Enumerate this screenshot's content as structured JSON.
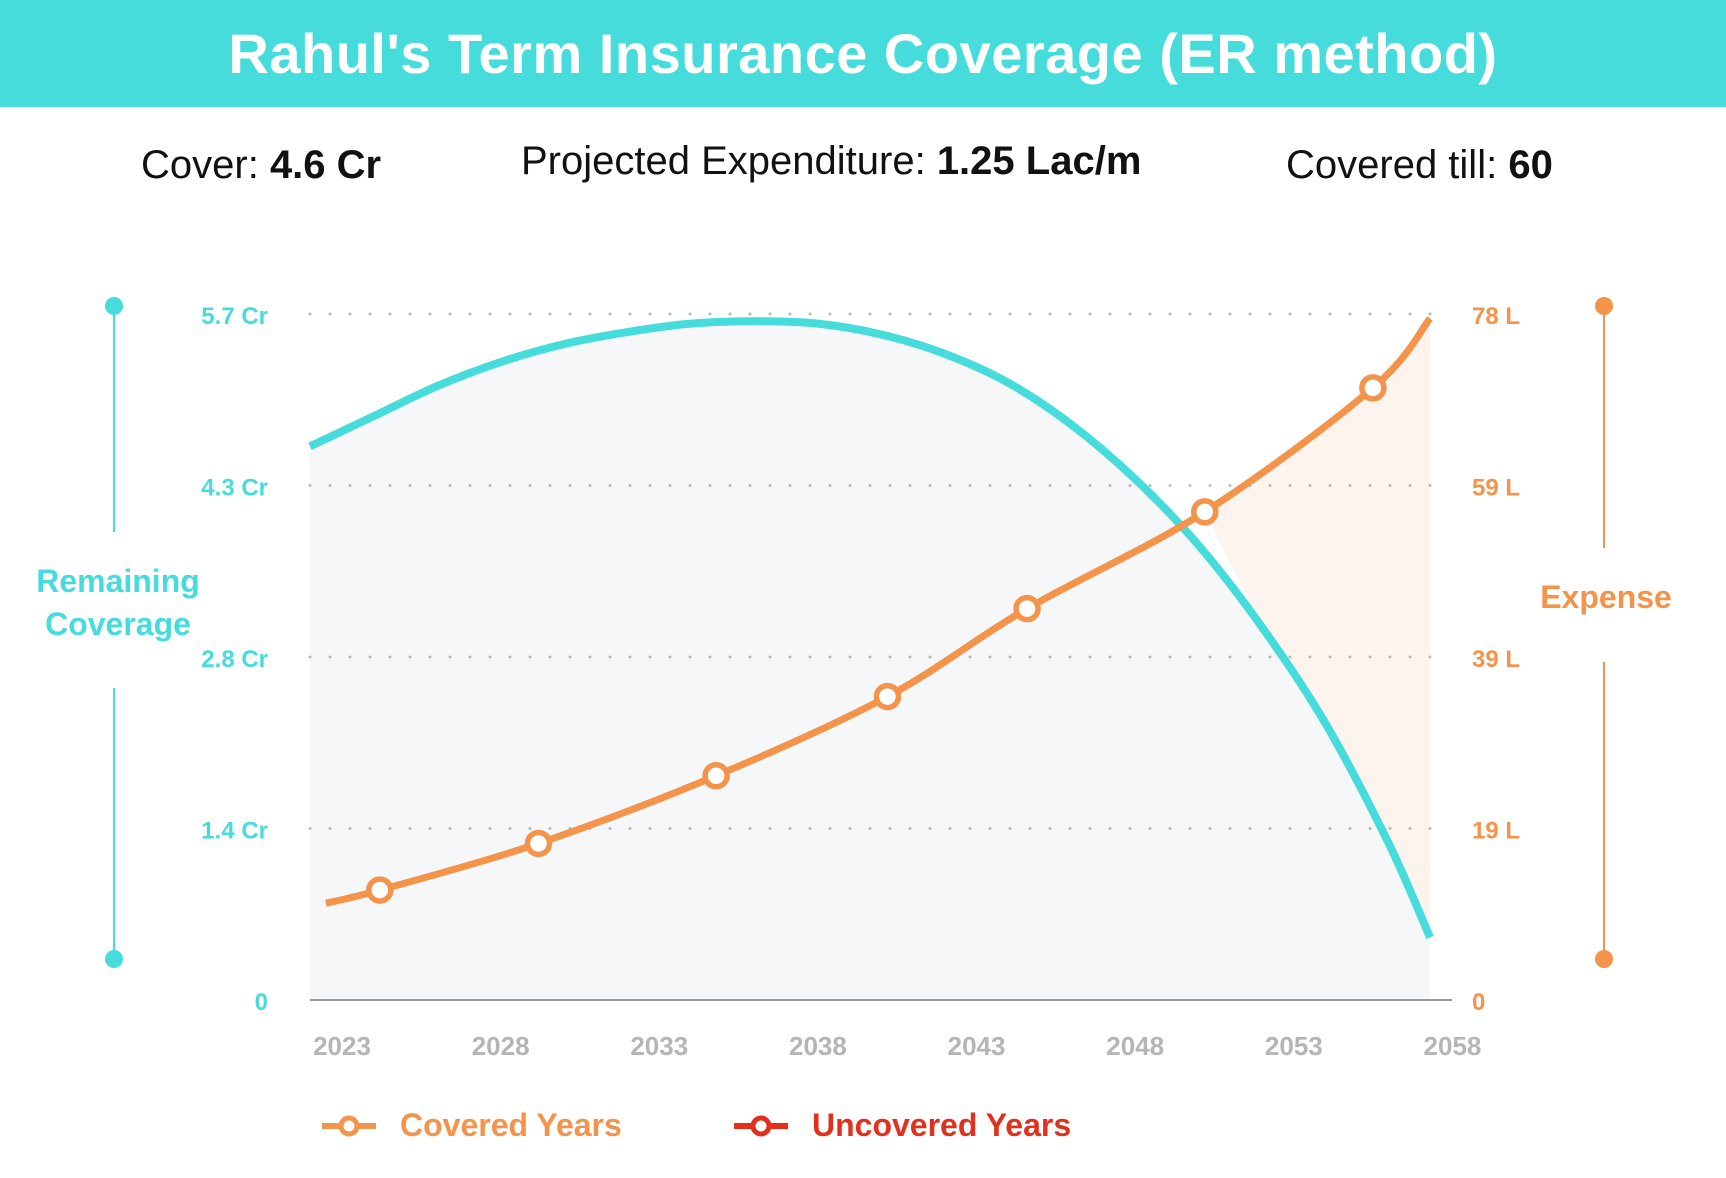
{
  "title": "Rahul's Term Insurance Coverage (ER method)",
  "stats": {
    "cover_label": "Cover:",
    "cover_value": "4.6 Cr",
    "expenditure_label": "Projected Expenditure:",
    "expenditure_value": "1.25 Lac/m",
    "covered_till_label": "Covered till:",
    "covered_till_value": "60"
  },
  "colors": {
    "header_bg": "#46dcdc",
    "coverage": "#46dcdc",
    "expense": "#f4934a",
    "uncovered": "#e3301c",
    "tick_gray": "#b5b5b5",
    "fill_covered": "#f6f7f9",
    "fill_uncovered": "#fdf4ee"
  },
  "chart_data": {
    "type": "line",
    "title": "Rahul's Term Insurance Coverage (ER method)",
    "x_ticks": [
      "2023",
      "2028",
      "2033",
      "2038",
      "2043",
      "2048",
      "2053",
      "2058"
    ],
    "xlim": [
      2023,
      2058.3
    ],
    "left_axis": {
      "label": "Remaining Coverage",
      "unit": "Cr",
      "ylim": [
        0,
        5.7
      ],
      "ticks": [
        {
          "value": 0,
          "label": "0"
        },
        {
          "value": 1.425,
          "label": "1.4 Cr"
        },
        {
          "value": 2.85,
          "label": "2.8 Cr"
        },
        {
          "value": 4.275,
          "label": "4.3 Cr"
        },
        {
          "value": 5.7,
          "label": "5.7 Cr"
        }
      ]
    },
    "right_axis": {
      "label": "Expense",
      "unit": "L",
      "ylim": [
        0,
        78
      ],
      "ticks": [
        {
          "value": 0,
          "label": "0"
        },
        {
          "value": 19.5,
          "label": "19 L"
        },
        {
          "value": 39,
          "label": "39 L"
        },
        {
          "value": 58.5,
          "label": "59 L"
        },
        {
          "value": 78,
          "label": "78 L"
        }
      ]
    },
    "crossover_x": 2051.2,
    "series": [
      {
        "name": "Remaining Coverage",
        "axis": "left",
        "x": [
          2023,
          2025,
          2027,
          2029,
          2031,
          2033,
          2035,
          2037,
          2039,
          2041,
          2043,
          2045,
          2047,
          2049,
          2051,
          2053,
          2055,
          2057,
          2058.3
        ],
        "values": [
          4.6,
          4.85,
          5.1,
          5.3,
          5.45,
          5.55,
          5.62,
          5.64,
          5.62,
          5.53,
          5.37,
          5.13,
          4.78,
          4.33,
          3.78,
          3.1,
          2.3,
          1.3,
          0.52
        ]
      },
      {
        "name": "Covered Years",
        "axis": "right",
        "x": [
          2023.5,
          2025.2,
          2030.2,
          2035.8,
          2041.2,
          2045.6,
          2051.2,
          2056.5,
          2058.3
        ],
        "values": [
          11,
          12.5,
          17.8,
          25.5,
          34.5,
          44.5,
          55.5,
          69.6,
          77.5
        ],
        "markers": [
          {
            "x": 2025.2,
            "value": 12.5
          },
          {
            "x": 2030.2,
            "value": 17.8
          },
          {
            "x": 2035.8,
            "value": 25.5
          },
          {
            "x": 2041.2,
            "value": 34.5
          },
          {
            "x": 2045.6,
            "value": 44.5
          },
          {
            "x": 2051.2,
            "value": 55.5
          },
          {
            "x": 2056.5,
            "value": 69.6
          }
        ]
      }
    ],
    "legend": [
      {
        "name": "Covered Years",
        "color": "#f4934a"
      },
      {
        "name": "Uncovered Years",
        "color": "#e3301c"
      }
    ]
  }
}
